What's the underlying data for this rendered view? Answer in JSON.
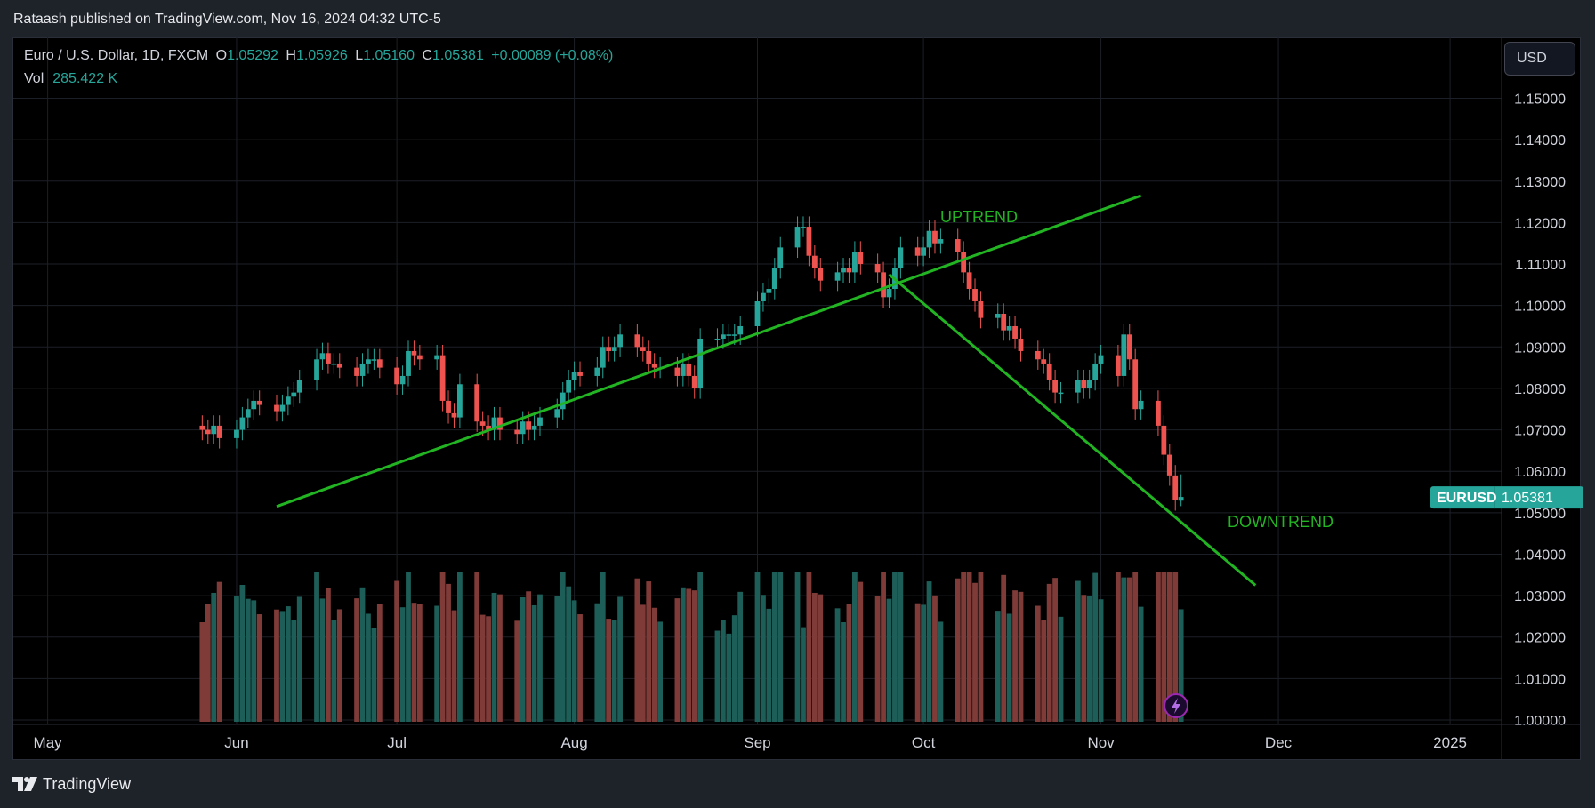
{
  "header": {
    "publisher": "Rataash published on TradingView.com, Nov 16, 2024 04:32 UTC-5"
  },
  "legend": {
    "symbol": "Euro / U.S. Dollar, 1D, FXCM",
    "o_label": "O",
    "o": "1.05292",
    "h_label": "H",
    "h": "1.05926",
    "l_label": "L",
    "l": "1.05160",
    "c_label": "C",
    "c": "1.05381",
    "change": "+0.00089 (+0.08%)",
    "vol_label": "Vol",
    "vol": "285.422 K"
  },
  "currency_button": "USD",
  "price_tag": {
    "symbol": "EURUSD",
    "value": "1.05381"
  },
  "annotations": {
    "uptrend": "UPTREND",
    "downtrend": "DOWNTREND"
  },
  "footer": {
    "brand": "TradingView"
  },
  "colors": {
    "up": "#26a69a",
    "down": "#ef5350",
    "trend": "#22b422",
    "vol_up": "#1e5e58",
    "vol_down": "#7f3b38",
    "grid": "#1c1f27"
  },
  "chart_data": {
    "type": "candlestick",
    "symbol": "EURUSD",
    "timeframe": "1D",
    "y_ticks": [
      "1.15000",
      "1.14000",
      "1.13000",
      "1.12000",
      "1.11000",
      "1.10000",
      "1.09000",
      "1.08000",
      "1.07000",
      "1.06000",
      "1.05000",
      "1.04000",
      "1.03000",
      "1.02000",
      "1.01000",
      "1.00000"
    ],
    "ylim": [
      1.0,
      1.15
    ],
    "x_ticks": [
      "May",
      "Jun",
      "Jul",
      "Aug",
      "Sep",
      "Oct",
      "Nov",
      "Dec",
      "2025"
    ],
    "x_tick_dates": [
      "2024-05-01",
      "2024-06-03",
      "2024-07-01",
      "2024-08-01",
      "2024-09-02",
      "2024-10-01",
      "2024-11-01",
      "2024-12-02",
      "2025-01-01"
    ],
    "date_range": [
      "2024-04-25",
      "2025-01-10"
    ],
    "last_bar_date": "2024-11-15",
    "candles_close_approx": [
      1.07,
      1.069,
      1.071,
      1.068,
      1.07,
      1.073,
      1.075,
      1.077,
      1.076,
      1.0745,
      1.076,
      1.078,
      1.079,
      1.082,
      1.087,
      1.0885,
      1.086,
      1.086,
      1.085,
      1.083,
      1.086,
      1.087,
      1.087,
      1.085,
      1.081,
      1.083,
      1.089,
      1.088,
      1.087,
      1.088,
      1.077,
      1.074,
      1.073,
      1.081,
      1.072,
      1.071,
      1.07,
      1.073,
      1.07,
      1.069,
      1.072,
      1.07,
      1.071,
      1.073,
      1.075,
      1.079,
      1.082,
      1.084,
      1.083,
      1.085,
      1.09,
      1.089,
      1.09,
      1.093,
      1.09,
      1.089,
      1.086,
      1.085,
      1.085,
      1.083,
      1.086,
      1.083,
      1.08,
      1.092,
      1.092,
      1.093,
      1.093,
      1.093,
      1.095,
      1.101,
      1.103,
      1.104,
      1.109,
      1.114,
      1.119,
      1.119,
      1.112,
      1.109,
      1.106,
      1.108,
      1.109,
      1.108,
      1.113,
      1.11,
      1.108,
      1.102,
      1.104,
      1.109,
      1.114,
      1.112,
      1.114,
      1.118,
      1.115,
      1.116,
      1.113,
      1.108,
      1.104,
      1.101,
      1.097,
      1.098,
      1.094,
      1.095,
      1.092,
      1.089,
      1.087,
      1.086,
      1.082,
      1.079,
      1.079,
      1.082,
      1.08,
      1.082,
      1.086,
      1.088,
      1.083,
      1.093,
      1.087,
      1.075,
      1.077,
      1.071,
      1.064,
      1.059,
      1.053,
      1.0538
    ],
    "volume_range_approx": [
      "low ~150K",
      "peaks ~390K"
    ],
    "last": {
      "open": 1.05292,
      "high": 1.05926,
      "low": 1.0516,
      "close": 1.05381
    },
    "trendlines": [
      {
        "label": "UPTREND",
        "from": [
          "2024-06-10",
          1.0515
        ],
        "to": [
          "2024-11-08",
          1.1265
        ]
      },
      {
        "label": "DOWNTREND",
        "from": [
          "2024-09-25",
          1.1075
        ],
        "to": [
          "2024-11-28",
          1.0325
        ]
      }
    ]
  }
}
